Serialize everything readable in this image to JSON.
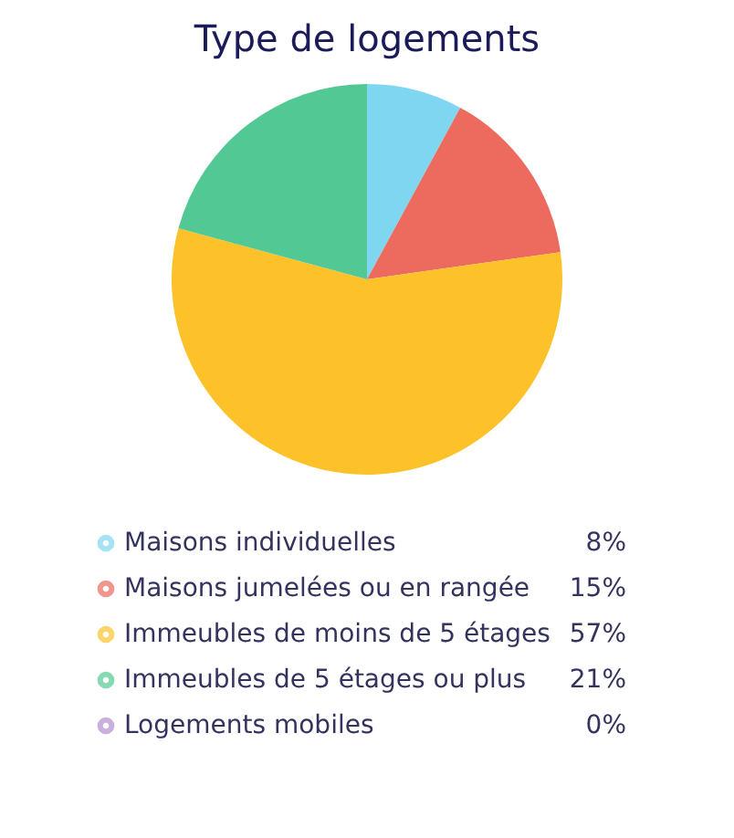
{
  "chart_data": {
    "type": "pie",
    "title": "Type de logements",
    "categories": [
      "Maisons individuelles",
      "Maisons jumelées ou en rangée",
      "Immeubles de moins de 5 étages",
      "Immeubles de 5 étages ou plus",
      "Logements mobiles"
    ],
    "values": [
      8,
      15,
      57,
      21,
      0
    ],
    "value_labels": [
      "8%",
      "15%",
      "57%",
      "21%",
      "0%"
    ],
    "colors": [
      "#7fd6f0",
      "#ec6a5e",
      "#fdc22a",
      "#52c994",
      "#b38fcf"
    ],
    "legend": "bottom"
  }
}
